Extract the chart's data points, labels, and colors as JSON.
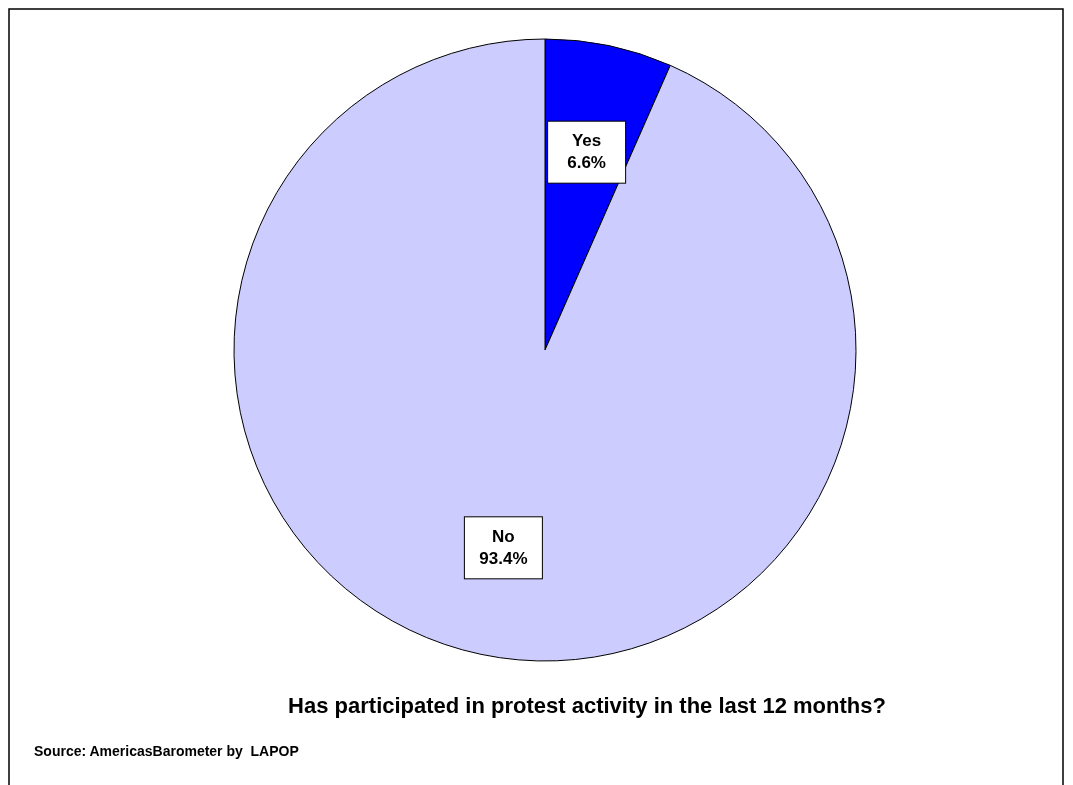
{
  "chart_data": {
    "type": "pie",
    "title": "Has participated in protest activity in the last 12 months?",
    "categories": [
      "Yes",
      "No"
    ],
    "values": [
      6.6,
      93.4
    ],
    "colors": [
      "#0000ff",
      "#ccccff"
    ],
    "value_labels": [
      "6.6%",
      "93.4%"
    ],
    "annotations": [
      "Source: AmericasBarometer by  LAPOP"
    ]
  }
}
